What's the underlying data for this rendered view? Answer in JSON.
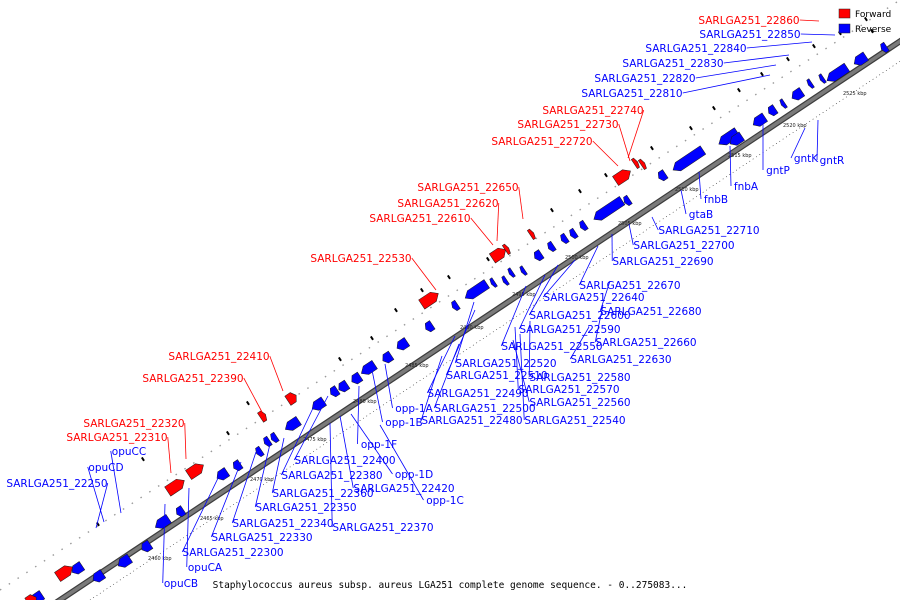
{
  "caption": "Staphylococcus aureus subsp. aureus LGA251 complete genome sequence. - 0..275083...",
  "legend": [
    {
      "label": "Forward",
      "color": "#ff0000"
    },
    {
      "label": "Reverse",
      "color": "#0000ff"
    }
  ],
  "colors": {
    "forward": "#ff0000",
    "reverse": "#0000ff",
    "backbone": "#7a7a7a"
  },
  "axis": {
    "unit": "kbp",
    "ticks": [
      2460,
      2465,
      2470,
      2475,
      2480,
      2485,
      2490,
      2495,
      2500,
      2505,
      2510,
      2515,
      2520,
      2525
    ]
  },
  "forward_genes": [
    {
      "name": "SARLGA251_22860"
    },
    {
      "name": "SARLGA251_22740"
    },
    {
      "name": "SARLGA251_22730"
    },
    {
      "name": "SARLGA251_22720"
    },
    {
      "name": "SARLGA251_22650"
    },
    {
      "name": "SARLGA251_22620"
    },
    {
      "name": "SARLGA251_22610"
    },
    {
      "name": "SARLGA251_22530"
    },
    {
      "name": "SARLGA251_22410"
    },
    {
      "name": "SARLGA251_22390"
    },
    {
      "name": "SARLGA251_22320"
    },
    {
      "name": "SARLGA251_22310"
    }
  ],
  "reverse_genes": [
    {
      "name": "SARLGA251_22850"
    },
    {
      "name": "SARLGA251_22840"
    },
    {
      "name": "SARLGA251_22830"
    },
    {
      "name": "SARLGA251_22820"
    },
    {
      "name": "SARLGA251_22810"
    },
    {
      "name": "gntR"
    },
    {
      "name": "gntK"
    },
    {
      "name": "gntP"
    },
    {
      "name": "fnbA"
    },
    {
      "name": "fnbB"
    },
    {
      "name": "gtaB"
    },
    {
      "name": "SARLGA251_22710"
    },
    {
      "name": "SARLGA251_22700"
    },
    {
      "name": "SARLGA251_22690"
    },
    {
      "name": "SARLGA251_22670"
    },
    {
      "name": "SARLGA251_22640"
    },
    {
      "name": "SARLGA251_22680"
    },
    {
      "name": "SARLGA251_22600"
    },
    {
      "name": "SARLGA251_22590"
    },
    {
      "name": "SARLGA251_22660"
    },
    {
      "name": "SARLGA251_22550"
    },
    {
      "name": "SARLGA251_22630"
    },
    {
      "name": "SARLGA251_22520"
    },
    {
      "name": "SARLGA251_22510"
    },
    {
      "name": "SARLGA251_22580"
    },
    {
      "name": "SARLGA251_22570"
    },
    {
      "name": "SARLGA251_22490"
    },
    {
      "name": "SARLGA251_22560"
    },
    {
      "name": "opp-1A"
    },
    {
      "name": "SARLGA251_22500"
    },
    {
      "name": "opp-1B"
    },
    {
      "name": "SARLGA251_22480"
    },
    {
      "name": "SARLGA251_22540"
    },
    {
      "name": "opp-1F"
    },
    {
      "name": "SARLGA251_22400"
    },
    {
      "name": "SARLGA251_22380"
    },
    {
      "name": "opp-1D"
    },
    {
      "name": "SARLGA251_22420"
    },
    {
      "name": "SARLGA251_22360"
    },
    {
      "name": "opp-1C"
    },
    {
      "name": "SARLGA251_22350"
    },
    {
      "name": "SARLGA251_22340"
    },
    {
      "name": "SARLGA251_22370"
    },
    {
      "name": "SARLGA251_22330"
    },
    {
      "name": "SARLGA251_22300"
    },
    {
      "name": "opuCA"
    },
    {
      "name": "opuCB"
    },
    {
      "name": "opuCC"
    },
    {
      "name": "opuCD"
    },
    {
      "name": "SARLGA251_22250"
    }
  ]
}
